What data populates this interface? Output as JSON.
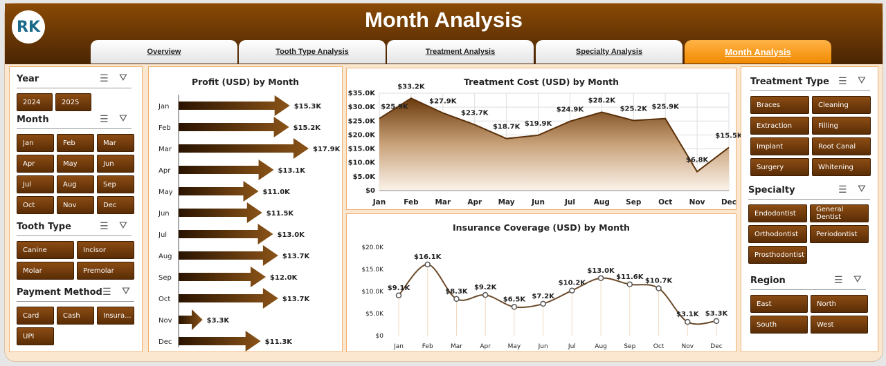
{
  "header": {
    "title": "Month Analysis",
    "logo_text": "RK"
  },
  "tabs": [
    {
      "label": "Overview"
    },
    {
      "label": "Tooth Type Analysis"
    },
    {
      "label": "Treatment Analysis"
    },
    {
      "label": "Specialty Analysis"
    },
    {
      "label": "Month Analysis",
      "active": true
    }
  ],
  "slicers_left": {
    "year": {
      "title": "Year",
      "items": [
        "2024",
        "2025"
      ]
    },
    "month": {
      "title": "Month",
      "items": [
        "Jan",
        "Feb",
        "Mar",
        "Apr",
        "May",
        "Jun",
        "Jul",
        "Aug",
        "Sep",
        "Oct",
        "Nov",
        "Dec"
      ]
    },
    "tooth_type": {
      "title": "Tooth Type",
      "items": [
        "Canine",
        "Incisor",
        "Molar",
        "Premolar"
      ]
    },
    "payment": {
      "title": "Payment Method",
      "items": [
        "Card",
        "Cash",
        "Insura...",
        "UPI"
      ]
    }
  },
  "slicers_right": {
    "treatment_type": {
      "title": "Treatment Type",
      "items": [
        "Braces",
        "Cleaning",
        "Extraction",
        "Filling",
        "Implant",
        "Root Canal",
        "Surgery",
        "Whitening"
      ]
    },
    "specialty": {
      "title": "Specialty",
      "items": [
        "Endodontist",
        "General Dentist",
        "Orthodontist",
        "Periodontist",
        "Prosthodontist"
      ]
    },
    "region": {
      "title": "Region",
      "items": [
        "East",
        "North",
        "South",
        "West"
      ]
    }
  },
  "colors": {
    "brown": "#6b3a0c",
    "accent": "#f08a00",
    "panel_border": "#f0b070"
  },
  "chart_data": [
    {
      "type": "bar",
      "title": "Profit (USD) by Month",
      "categories": [
        "Jan",
        "Feb",
        "Mar",
        "Apr",
        "May",
        "Jun",
        "Jul",
        "Aug",
        "Sep",
        "Oct",
        "Nov",
        "Dec"
      ],
      "values": [
        15.3,
        15.2,
        17.9,
        13.1,
        11.0,
        11.5,
        13.0,
        13.7,
        12.0,
        13.7,
        3.3,
        11.3
      ],
      "labels": [
        "$15.3K",
        "$15.2K",
        "$17.9K",
        "$13.1K",
        "$11.0K",
        "$11.5K",
        "$13.0K",
        "$13.7K",
        "$12.0K",
        "$13.7K",
        "$3.3K",
        "$11.3K"
      ],
      "orientation": "horizontal"
    },
    {
      "type": "area",
      "title": "Treatment Cost (USD) by Month",
      "categories": [
        "Jan",
        "Feb",
        "Mar",
        "Apr",
        "May",
        "Jun",
        "Jul",
        "Aug",
        "Sep",
        "Oct",
        "Nov",
        "Dec"
      ],
      "values": [
        25.9,
        33.2,
        27.9,
        23.7,
        18.7,
        19.9,
        24.9,
        28.2,
        25.2,
        25.9,
        6.8,
        15.5
      ],
      "labels": [
        "$25.9K",
        "$33.2K",
        "$27.9K",
        "$23.7K",
        "$18.7K",
        "$19.9K",
        "$24.9K",
        "$28.2K",
        "$25.2K",
        "$25.9K",
        "$6.8K",
        "$15.5K"
      ],
      "yticks": [
        "$0",
        "$5.0K",
        "$10.0K",
        "$15.0K",
        "$20.0K",
        "$25.0K",
        "$30.0K",
        "$35.0K"
      ],
      "ylim": [
        0,
        35
      ],
      "grid": true
    },
    {
      "type": "line",
      "title": "Insurance Coverage (USD) by Month",
      "categories": [
        "Jan",
        "Feb",
        "Mar",
        "Apr",
        "May",
        "Jun",
        "Jul",
        "Aug",
        "Sep",
        "Oct",
        "Nov",
        "Dec"
      ],
      "values": [
        9.1,
        16.1,
        8.3,
        9.2,
        6.5,
        7.2,
        10.2,
        13.0,
        11.6,
        10.7,
        3.1,
        3.3
      ],
      "labels": [
        "$9.1K",
        "$16.1K",
        "$8.3K",
        "$9.2K",
        "$6.5K",
        "$7.2K",
        "$10.2K",
        "$13.0K",
        "$11.6K",
        "$10.7K",
        "$3.1K",
        "$3.3K"
      ],
      "yticks": [
        "$0",
        "$5.0K",
        "$10.0K",
        "$15.0K",
        "$20.0K"
      ],
      "ylim": [
        0,
        20
      ],
      "smooth": true
    }
  ]
}
